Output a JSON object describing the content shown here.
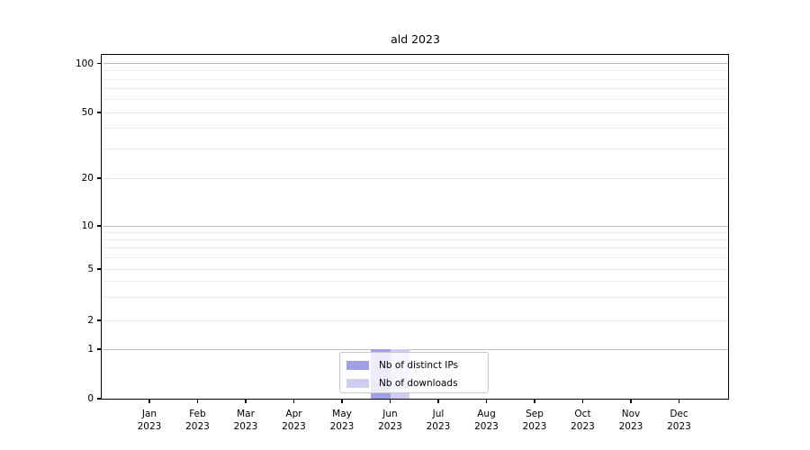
{
  "title": "ald 2023",
  "colors": {
    "background": "#ffffff",
    "axis": "#000000",
    "grid_power10": "#bcbcbc",
    "grid_labeled": "#e3e3e3",
    "grid_minor": "#ececec",
    "legend_border": "#c9c9c9",
    "series_distinct_ips": "#a0a0e6",
    "series_downloads": "#cdcdf2"
  },
  "legend": {
    "items": [
      {
        "label": "Nb of distinct IPs",
        "color": "#a0a0e6"
      },
      {
        "label": "Nb of downloads",
        "color": "#cdcdf2"
      }
    ]
  },
  "chart_data": {
    "type": "bar",
    "title": "ald 2023",
    "xlabel": "",
    "ylabel": "",
    "categories": [
      "Jan 2023",
      "Feb 2023",
      "Mar 2023",
      "Apr 2023",
      "May 2023",
      "Jun 2023",
      "Jul 2023",
      "Aug 2023",
      "Sep 2023",
      "Oct 2023",
      "Nov 2023",
      "Dec 2023"
    ],
    "series": [
      {
        "name": "Nb of distinct IPs",
        "color": "#a0a0e6",
        "values": [
          0,
          0,
          0,
          0,
          0,
          1,
          0,
          0,
          0,
          0,
          0,
          0
        ]
      },
      {
        "name": "Nb of downloads",
        "color": "#cdcdf2",
        "values": [
          0,
          0,
          0,
          0,
          0,
          1,
          0,
          0,
          0,
          0,
          0,
          0
        ]
      }
    ],
    "y_axis": {
      "scale": "symlog",
      "major_ticks": [
        0,
        1,
        2,
        5,
        10,
        20,
        50,
        100
      ],
      "minor_ticks": [
        3,
        4,
        6,
        7,
        8,
        9,
        30,
        40,
        60,
        70,
        80,
        90
      ],
      "ylim": [
        0,
        120
      ]
    },
    "grid": true,
    "legend_position": "lower center"
  }
}
